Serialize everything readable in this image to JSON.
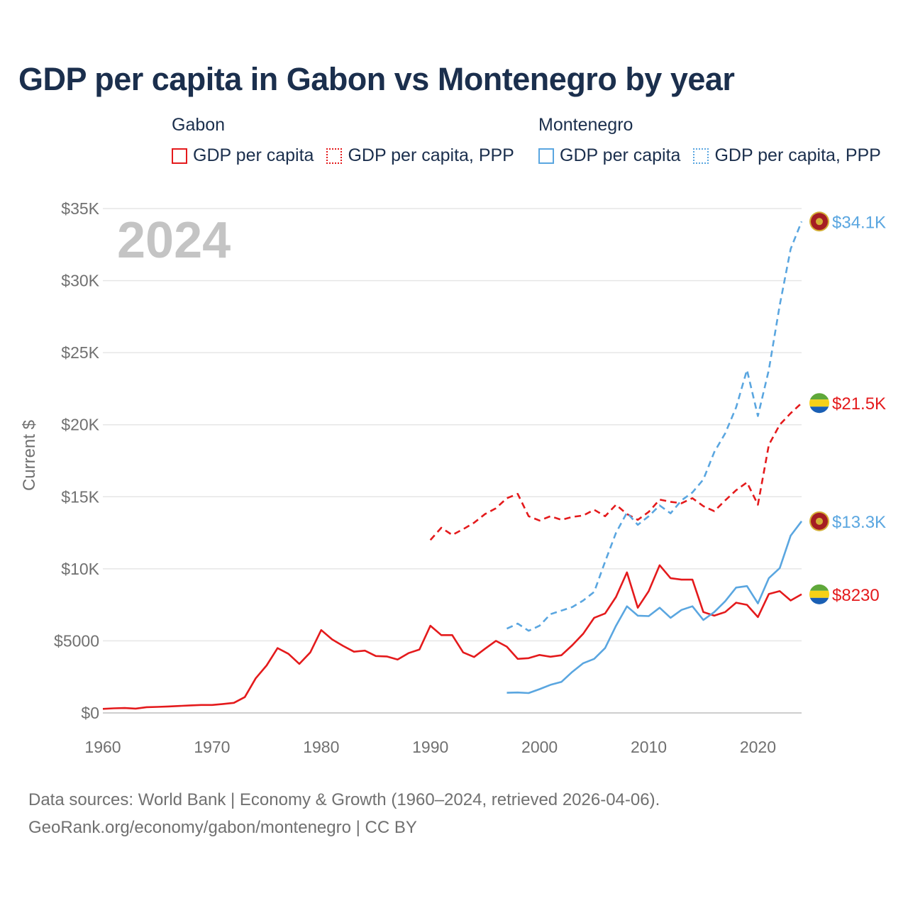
{
  "title": "GDP per capita in Gabon vs Montenegro by year",
  "year_watermark": "2024",
  "legend": {
    "groups": [
      {
        "name": "Gabon",
        "color": "#e41a1c",
        "items": [
          {
            "label": "GDP per capita",
            "style": "solid"
          },
          {
            "label": "GDP per capita, PPP",
            "style": "dotted"
          }
        ]
      },
      {
        "name": "Montenegro",
        "color": "#5aa6e0",
        "items": [
          {
            "label": "GDP per capita",
            "style": "solid"
          },
          {
            "label": "GDP per capita, PPP",
            "style": "dotted"
          }
        ]
      }
    ]
  },
  "footer": {
    "line1": "Data sources: World Bank | Economy & Growth (1960–2024, retrieved 2026-04-06).",
    "line2": "GeoRank.org/economy/gabon/montenegro | CC BY"
  },
  "chart_data": {
    "type": "line",
    "title": "GDP per capita in Gabon vs Montenegro by year",
    "xlabel": "",
    "ylabel": "Current $",
    "xlim": [
      1960,
      2024
    ],
    "ylim": [
      0,
      35000
    ],
    "x_ticks": [
      1960,
      1970,
      1980,
      1990,
      2000,
      2010,
      2020
    ],
    "x_tick_labels": [
      "1960",
      "1970",
      "1980",
      "1990",
      "2000",
      "2010",
      "2020"
    ],
    "y_ticks": [
      0,
      5000,
      10000,
      15000,
      20000,
      25000,
      30000,
      35000
    ],
    "y_tick_labels": [
      "$0",
      "$5000",
      "$10K",
      "$15K",
      "$20K",
      "$25K",
      "$30K",
      "$35K"
    ],
    "grid": true,
    "series": [
      {
        "name": "Gabon GDP per capita",
        "color": "#e41a1c",
        "dash": "solid",
        "end_label": "$8230",
        "flag": "gabon",
        "start_year": 1960,
        "values": [
          280,
          320,
          340,
          300,
          400,
          420,
          450,
          480,
          520,
          550,
          550,
          620,
          700,
          1100,
          2400,
          3300,
          4500,
          4100,
          3400,
          4200,
          5750,
          5100,
          4650,
          4250,
          4320,
          3950,
          3920,
          3700,
          4150,
          4400,
          6050,
          5400,
          5400,
          4200,
          3880,
          4450,
          5000,
          4600,
          3750,
          3800,
          4020,
          3900,
          4000,
          4700,
          5500,
          6600,
          6900,
          8050,
          9750,
          7300,
          8450,
          10250,
          9350,
          9250,
          9250,
          7000,
          6750,
          7000,
          7650,
          7500,
          6650,
          8250,
          8450,
          7800,
          8230
        ]
      },
      {
        "name": "Gabon GDP per capita, PPP",
        "color": "#e41a1c",
        "dash": "dashed",
        "end_label": "$21.5K",
        "flag": "gabon",
        "start_year": 1990,
        "values": [
          12000,
          12850,
          12350,
          12750,
          13200,
          13800,
          14200,
          14900,
          15200,
          13650,
          13350,
          13650,
          13400,
          13600,
          13700,
          14100,
          13650,
          14450,
          13800,
          13400,
          13950,
          14800,
          14650,
          14550,
          14900,
          14350,
          14000,
          14750,
          15450,
          16000,
          14450,
          18600,
          20000,
          20800,
          21500
        ]
      },
      {
        "name": "Montenegro GDP per capita",
        "color": "#5aa6e0",
        "dash": "solid",
        "end_label": "$13.3K",
        "flag": "montenegro",
        "start_year": 1997,
        "values": [
          1400,
          1420,
          1380,
          1650,
          1950,
          2150,
          2850,
          3450,
          3750,
          4500,
          6050,
          7400,
          6750,
          6720,
          7300,
          6600,
          7150,
          7400,
          6450,
          7000,
          7750,
          8700,
          8800,
          7600,
          9350,
          10050,
          12300,
          13300
        ]
      },
      {
        "name": "Montenegro GDP per capita, PPP",
        "color": "#5aa6e0",
        "dash": "dashed",
        "end_label": "$34.1K",
        "flag": "montenegro",
        "start_year": 1997,
        "values": [
          5850,
          6200,
          5700,
          6050,
          6850,
          7100,
          7350,
          7800,
          8400,
          10500,
          12500,
          13900,
          13050,
          13650,
          14400,
          13850,
          14750,
          15300,
          16200,
          18100,
          19400,
          21200,
          23800,
          20600,
          23800,
          28300,
          32200,
          34100
        ]
      }
    ]
  }
}
